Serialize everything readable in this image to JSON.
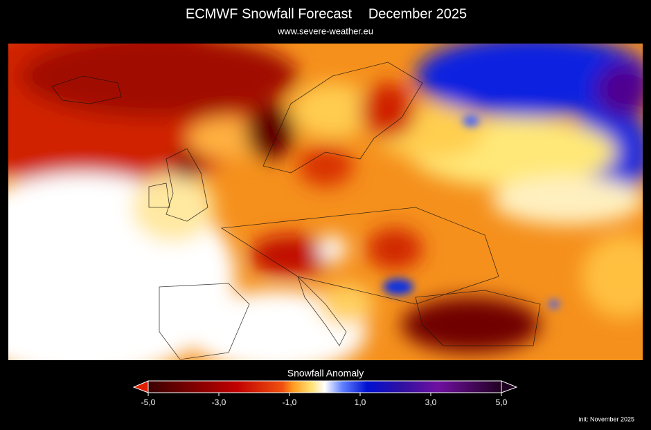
{
  "header": {
    "title": "ECMWF Snowfall Forecast",
    "date": "December 2025",
    "subtitle": "www.severe-weather.eu"
  },
  "legend": {
    "label": "Snowfall Anomaly",
    "ticks": [
      "-5,0",
      "-3,0",
      "-1,0",
      "1,0",
      "3,0",
      "5,0"
    ]
  },
  "footer": {
    "init": "init: November 2025"
  }
}
